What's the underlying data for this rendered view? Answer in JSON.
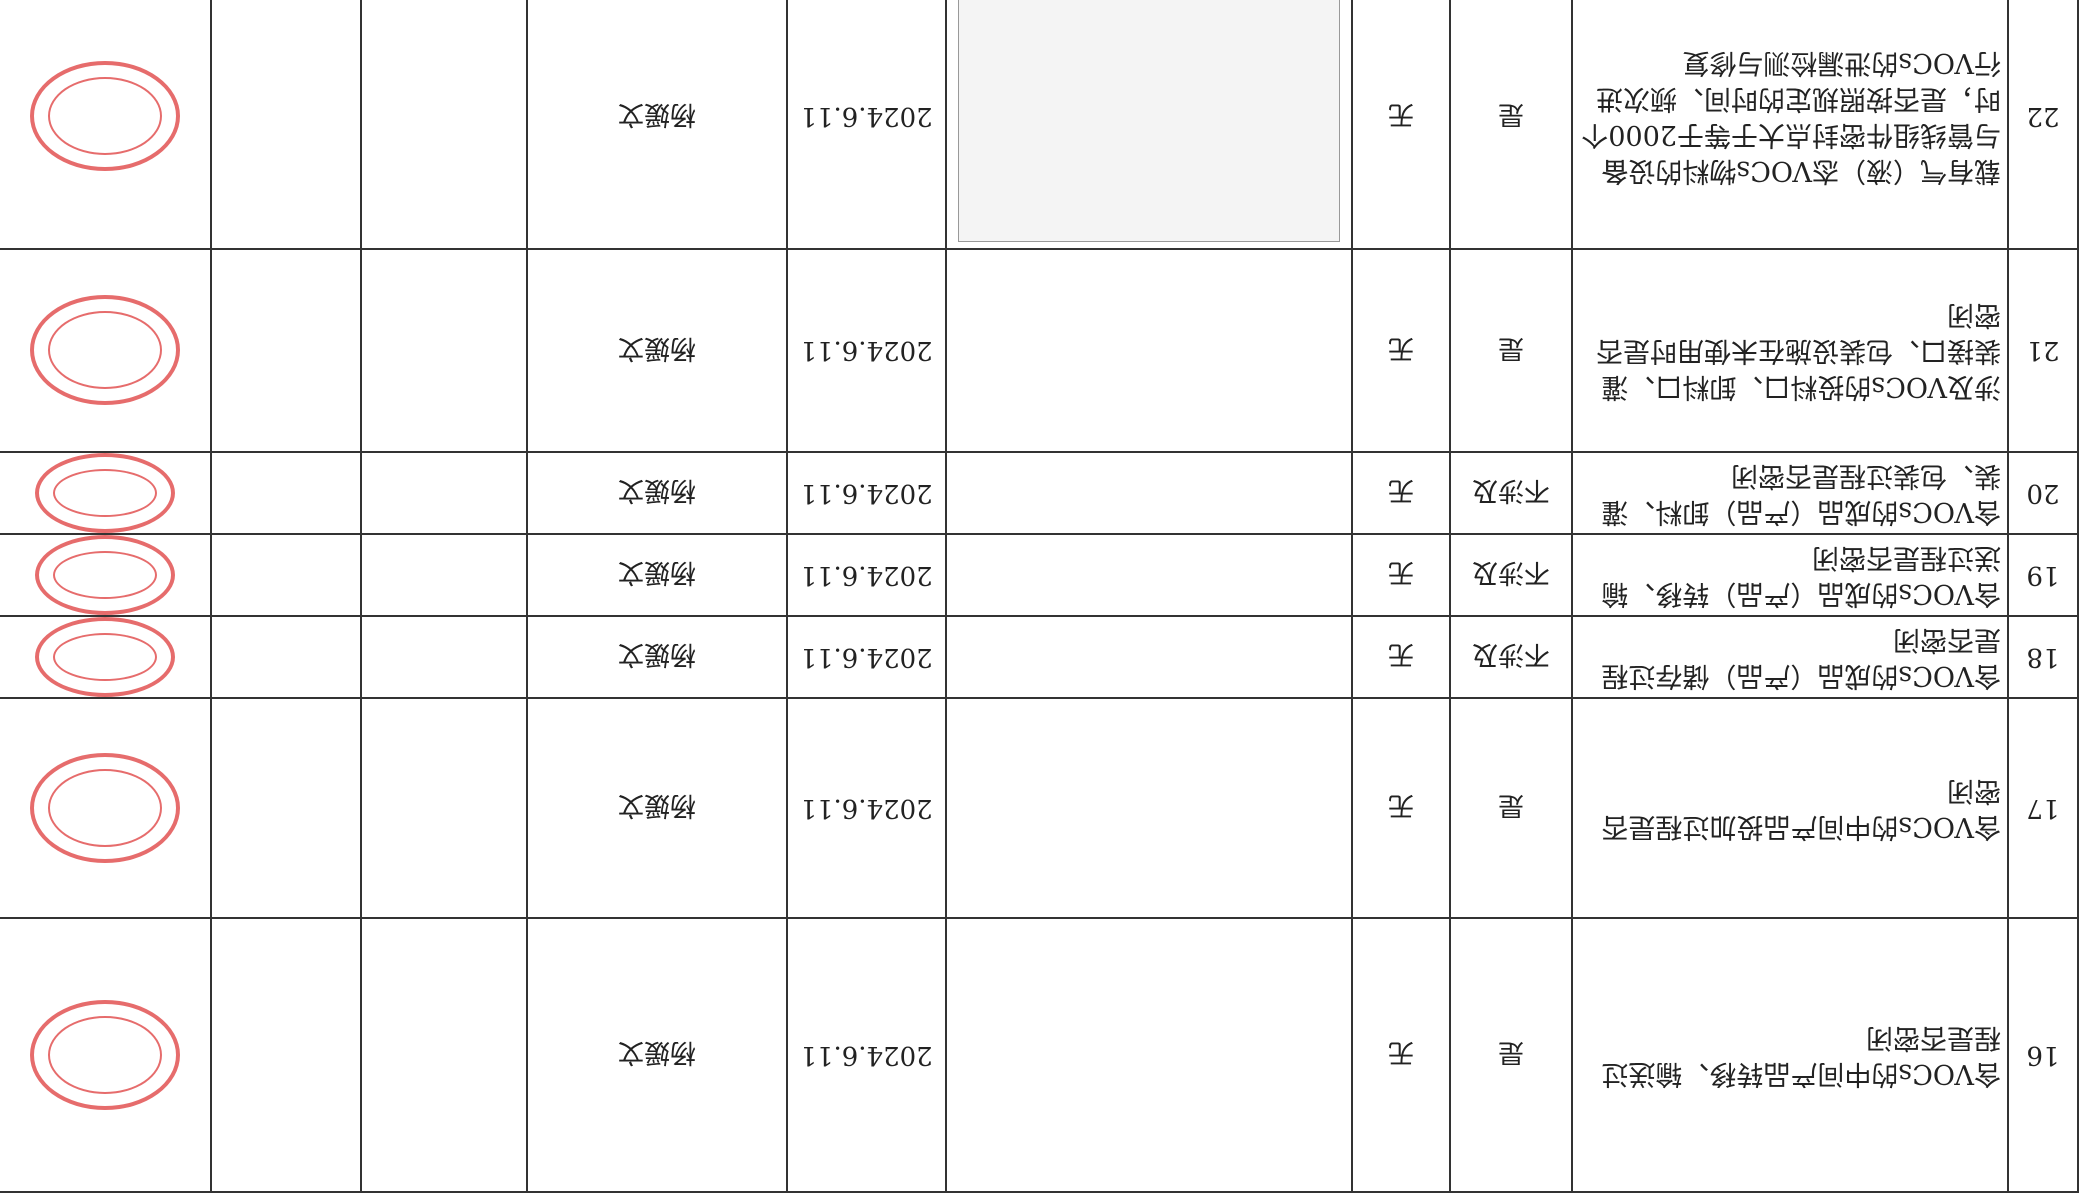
{
  "table": {
    "rows": [
      {
        "no": "16",
        "item": "含VOCs的中间产品转移、输送过程是否密闭",
        "applicable": "是",
        "issue": "无",
        "date": "2024.6.11",
        "inspector": "杨媛文"
      },
      {
        "no": "17",
        "item": "含VOCs的中间产品投加过程是否密闭",
        "applicable": "是",
        "issue": "无",
        "date": "2024.6.11",
        "inspector": "杨媛文"
      },
      {
        "no": "18",
        "item": "含VOCs的成品（产品）储存过程是否密闭",
        "applicable": "不涉及",
        "issue": "无",
        "date": "2024.6.11",
        "inspector": "杨媛文"
      },
      {
        "no": "19",
        "item": "含VOCs的成品（产品）转移、输送过程是否密闭",
        "applicable": "不涉及",
        "issue": "无",
        "date": "2024.6.11",
        "inspector": "杨媛文"
      },
      {
        "no": "20",
        "item": "含VOCs的成品（产品）卸料、灌装、包装过程是否密闭",
        "applicable": "不涉及",
        "issue": "无",
        "date": "2024.6.11",
        "inspector": "杨媛文"
      },
      {
        "no": "21",
        "item": "涉及VOCs的投料口、卸料口、灌装接口、包装设施在未使用时是否密闭",
        "applicable": "是",
        "issue": "无",
        "date": "2024.6.11",
        "inspector": "杨媛文"
      },
      {
        "no": "22",
        "item": "载有气（液）态VOCs物料的设备与管线组件密封点大于等于2000个时，是否按照规定的时间、频次进行VOCs的泄漏检测与修复",
        "applicable": "是",
        "issue": "无",
        "date": "2024.6.11",
        "inspector": "杨媛文"
      }
    ]
  }
}
